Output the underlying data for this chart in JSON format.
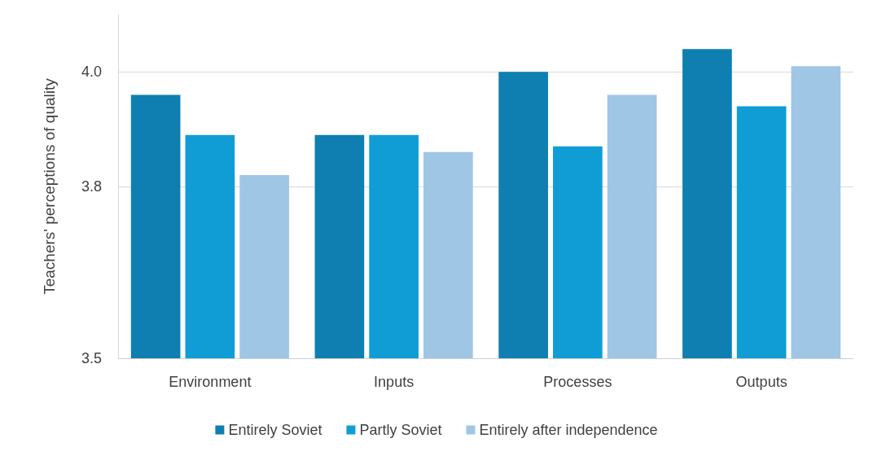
{
  "chart_data": {
    "type": "bar",
    "ylabel": "Teachers' perceptions of quality",
    "categories": [
      "Environment",
      "Inputs",
      "Processes",
      "Outputs"
    ],
    "series": [
      {
        "name": "Entirely Soviet",
        "color": "#0e7fb0",
        "values": [
          3.96,
          3.89,
          4.0,
          4.04
        ]
      },
      {
        "name": "Partly Soviet",
        "color": "#109dd6",
        "values": [
          3.89,
          3.89,
          3.87,
          3.94
        ]
      },
      {
        "name": "Entirely after independence",
        "color": "#a0c6e6",
        "values": [
          3.82,
          3.86,
          3.96,
          4.01
        ]
      }
    ],
    "ylim": [
      3.5,
      4.1
    ],
    "yticks": [
      3.5,
      3.8,
      {
        "value": 4.0,
        "label": "4.0"
      }
    ],
    "grid": "y",
    "legend": "bottom"
  }
}
